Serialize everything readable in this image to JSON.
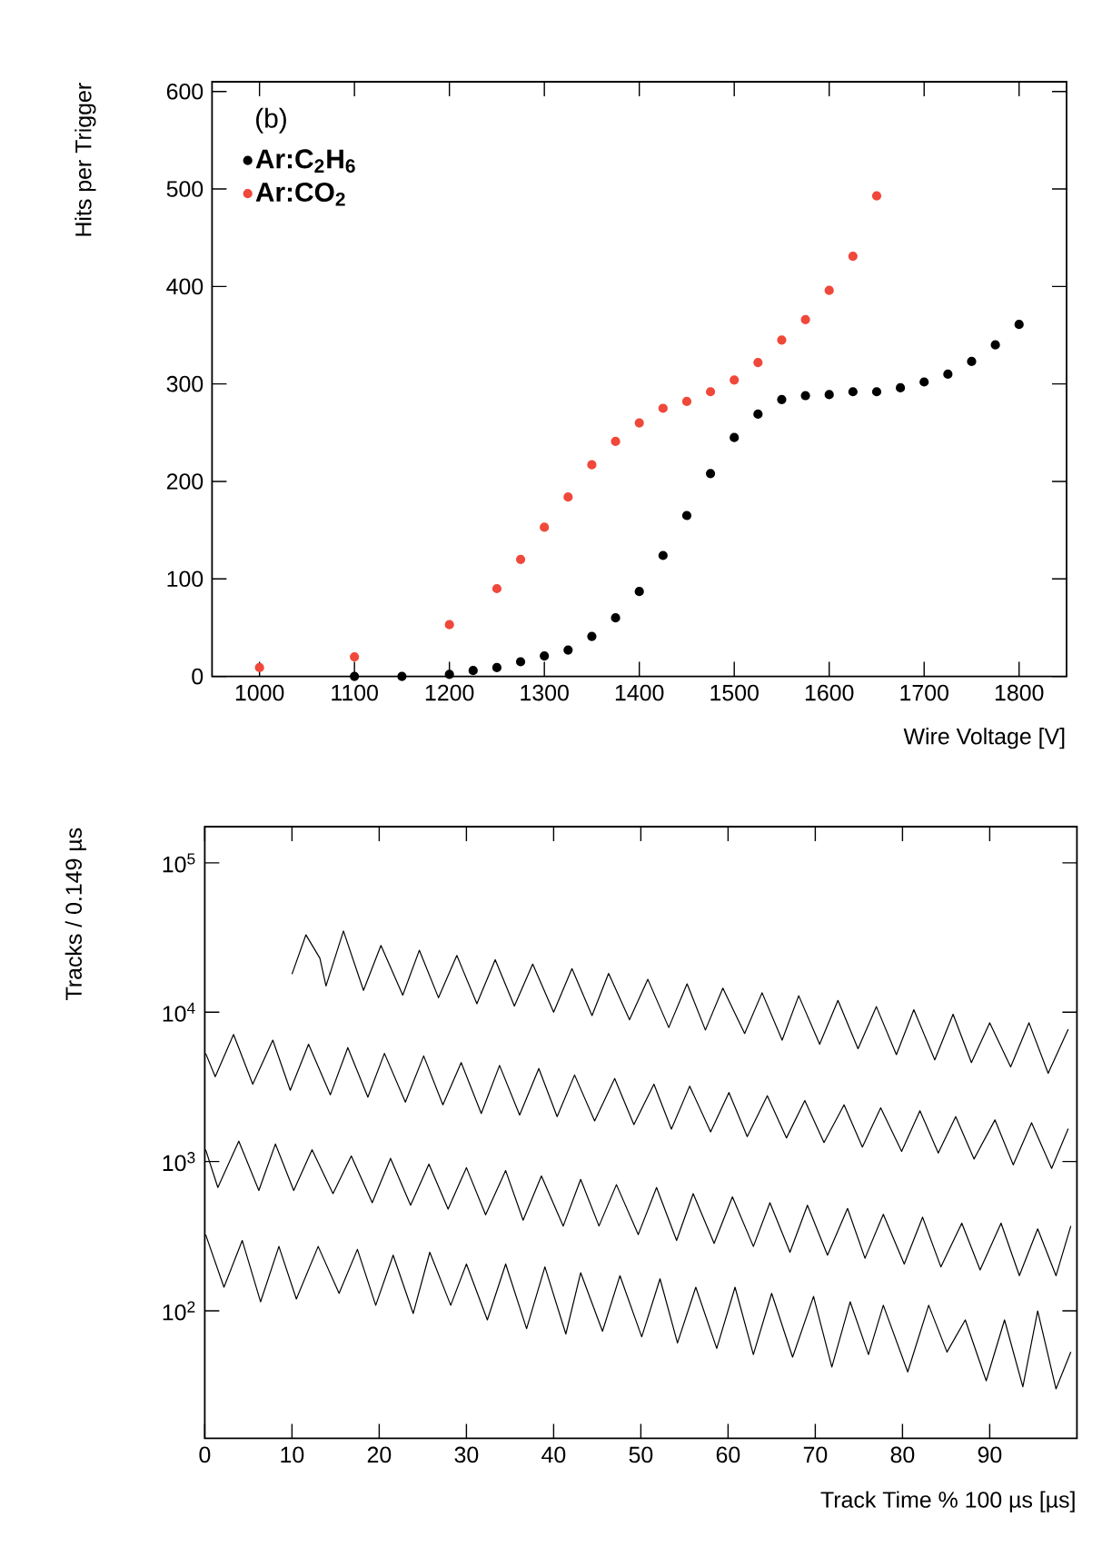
{
  "chart_data": [
    {
      "type": "scatter",
      "xlabel": "Wire Voltage [V]",
      "ylabel": "Hits per Trigger",
      "annotations": [
        "(b)"
      ],
      "xlim": [
        950,
        1850
      ],
      "ylim": [
        0,
        610
      ],
      "xticks": [
        1000,
        1100,
        1200,
        1300,
        1400,
        1500,
        1600,
        1700,
        1800
      ],
      "yticks": [
        0,
        100,
        200,
        300,
        400,
        500,
        600
      ],
      "legend": "top left",
      "marker": "circle",
      "series": [
        {
          "name": "Ar:C$_{2}$H$_{6}$",
          "color": "#000000",
          "x": [
            1100,
            1150,
            1200,
            1225,
            1250,
            1275,
            1300,
            1325,
            1350,
            1375,
            1400,
            1425,
            1450,
            1475,
            1500,
            1525,
            1550,
            1575,
            1600,
            1625,
            1650,
            1675,
            1700,
            1725,
            1750,
            1775,
            1800
          ],
          "values": [
            0,
            0,
            2,
            6,
            9,
            15,
            21,
            27,
            41,
            60,
            87,
            124,
            165,
            208,
            245,
            269,
            284,
            288,
            289,
            292,
            292,
            296,
            302,
            310,
            323,
            340,
            361
          ]
        },
        {
          "name": "Ar:CO$_{2}$",
          "color": "#f0483a",
          "x": [
            1000,
            1100,
            1200,
            1250,
            1275,
            1300,
            1325,
            1350,
            1375,
            1400,
            1425,
            1450,
            1475,
            1500,
            1525,
            1550,
            1575,
            1600,
            1625,
            1650
          ],
          "values": [
            9,
            20,
            53,
            90,
            120,
            153,
            184,
            217,
            241,
            260,
            275,
            282,
            292,
            304,
            322,
            345,
            366,
            396,
            431,
            493
          ]
        }
      ]
    },
    {
      "type": "line",
      "xlabel": "Track Time % 100 µs [µs]",
      "ylabel": "Tracks / 0.149 µs",
      "log": "y",
      "xlim": [
        0,
        100
      ],
      "ylim": [
        14,
        175000
      ],
      "xticks": [
        0,
        10,
        20,
        30,
        40,
        50,
        60,
        70,
        80,
        90
      ],
      "yticks": [
        {
          "value": 100,
          "label": "10$^{2}$"
        },
        {
          "value": 1000,
          "label": "10$^{3}$"
        },
        {
          "value": 10000,
          "label": "10$^{4}$"
        },
        {
          "value": 100000,
          "label": "10$^{5}$"
        }
      ],
      "series": [
        {
          "color": "#000000",
          "x": [
            10.0,
            11.6,
            13.2,
            13.9,
            15.9,
            18.2,
            20.2,
            22.7,
            24.6,
            26.8,
            28.9,
            31.2,
            33.3,
            35.5,
            37.6,
            40.0,
            42.1,
            44.4,
            46.3,
            48.7,
            50.8,
            53.2,
            55.3,
            57.4,
            59.4,
            61.9,
            63.9,
            66.2,
            68.1,
            70.5,
            72.6,
            74.9,
            77.0,
            79.3,
            81.3,
            83.7,
            85.8,
            87.9,
            90.0,
            92.4,
            94.5,
            96.7,
            99.0
          ],
          "values": [
            18000,
            33000,
            23000,
            15000,
            35000,
            14000,
            28000,
            13000,
            26000,
            12500,
            24000,
            11400,
            22500,
            11000,
            21000,
            10000,
            19600,
            9500,
            18200,
            8900,
            16600,
            7900,
            15500,
            7600,
            14500,
            7200,
            13500,
            6500,
            12900,
            6100,
            12000,
            5700,
            10900,
            5200,
            10400,
            4800,
            9700,
            4600,
            8500,
            4300,
            8500,
            3900,
            7700
          ]
        },
        {
          "color": "#000000",
          "x": [
            0.1,
            1.2,
            3.3,
            5.5,
            7.8,
            9.8,
            11.9,
            14.4,
            16.4,
            18.7,
            20.6,
            23.0,
            25.1,
            27.3,
            29.4,
            31.7,
            33.8,
            36.1,
            38.3,
            40.4,
            42.4,
            44.7,
            47.0,
            49.2,
            51.5,
            53.5,
            55.6,
            58.0,
            60.1,
            62.2,
            64.5,
            66.7,
            68.8,
            71.0,
            73.3,
            75.4,
            77.5,
            79.9,
            82.0,
            84.1,
            86.1,
            88.2,
            90.6,
            92.7,
            94.8,
            97.1,
            99.0
          ],
          "values": [
            5300,
            3700,
            7100,
            3300,
            6500,
            3000,
            6100,
            2800,
            5800,
            2700,
            5300,
            2500,
            5100,
            2400,
            4600,
            2100,
            4400,
            2050,
            4200,
            2000,
            3800,
            1870,
            3600,
            1770,
            3300,
            1650,
            3200,
            1580,
            2900,
            1470,
            2760,
            1440,
            2560,
            1340,
            2400,
            1250,
            2290,
            1170,
            2190,
            1140,
            2000,
            1040,
            1900,
            950,
            1820,
            900,
            1660
          ]
        },
        {
          "color": "#000000",
          "x": [
            0.1,
            1.5,
            3.9,
            6.2,
            8.1,
            10.2,
            12.3,
            14.7,
            16.8,
            19.2,
            21.3,
            23.6,
            25.7,
            27.9,
            30.0,
            32.2,
            34.5,
            36.5,
            38.6,
            41.1,
            43.1,
            45.2,
            47.2,
            49.7,
            51.8,
            54.1,
            56.0,
            58.4,
            60.5,
            62.9,
            64.8,
            67.1,
            69.1,
            71.4,
            73.7,
            75.7,
            77.8,
            80.2,
            82.3,
            84.4,
            86.8,
            88.9,
            91.3,
            93.4,
            95.5,
            97.6,
            99.3
          ],
          "values": [
            1200,
            670,
            1370,
            640,
            1310,
            640,
            1200,
            610,
            1090,
            530,
            1050,
            510,
            960,
            480,
            910,
            440,
            870,
            405,
            800,
            370,
            760,
            370,
            700,
            324,
            670,
            296,
            610,
            283,
            580,
            270,
            530,
            247,
            510,
            236,
            485,
            225,
            443,
            206,
            424,
            197,
            387,
            188,
            387,
            172,
            354,
            172,
            370
          ]
        },
        {
          "color": "#000000",
          "x": [
            0.1,
            2.2,
            4.3,
            6.4,
            8.5,
            10.5,
            13.0,
            15.4,
            17.5,
            19.6,
            21.6,
            23.9,
            25.8,
            28.2,
            30.0,
            32.4,
            34.5,
            36.9,
            39.0,
            41.4,
            43.1,
            45.6,
            47.6,
            50.1,
            52.2,
            54.2,
            56.3,
            58.7,
            60.8,
            62.9,
            65.0,
            67.4,
            69.8,
            71.9,
            74.0,
            76.1,
            77.8,
            80.6,
            83.0,
            85.1,
            87.2,
            89.6,
            91.7,
            93.8,
            95.5,
            97.6,
            99.3
          ],
          "values": [
            324,
            144,
            296,
            115,
            270,
            120,
            270,
            131,
            258,
            109,
            236,
            96,
            247,
            109,
            206,
            87,
            206,
            76,
            197,
            70,
            180,
            73,
            172,
            67,
            164,
            61,
            144,
            56,
            144,
            51,
            131,
            49,
            125,
            42,
            115,
            51,
            109,
            39,
            109,
            53,
            87,
            34,
            87,
            31,
            100,
            30,
            53
          ]
        }
      ]
    }
  ]
}
